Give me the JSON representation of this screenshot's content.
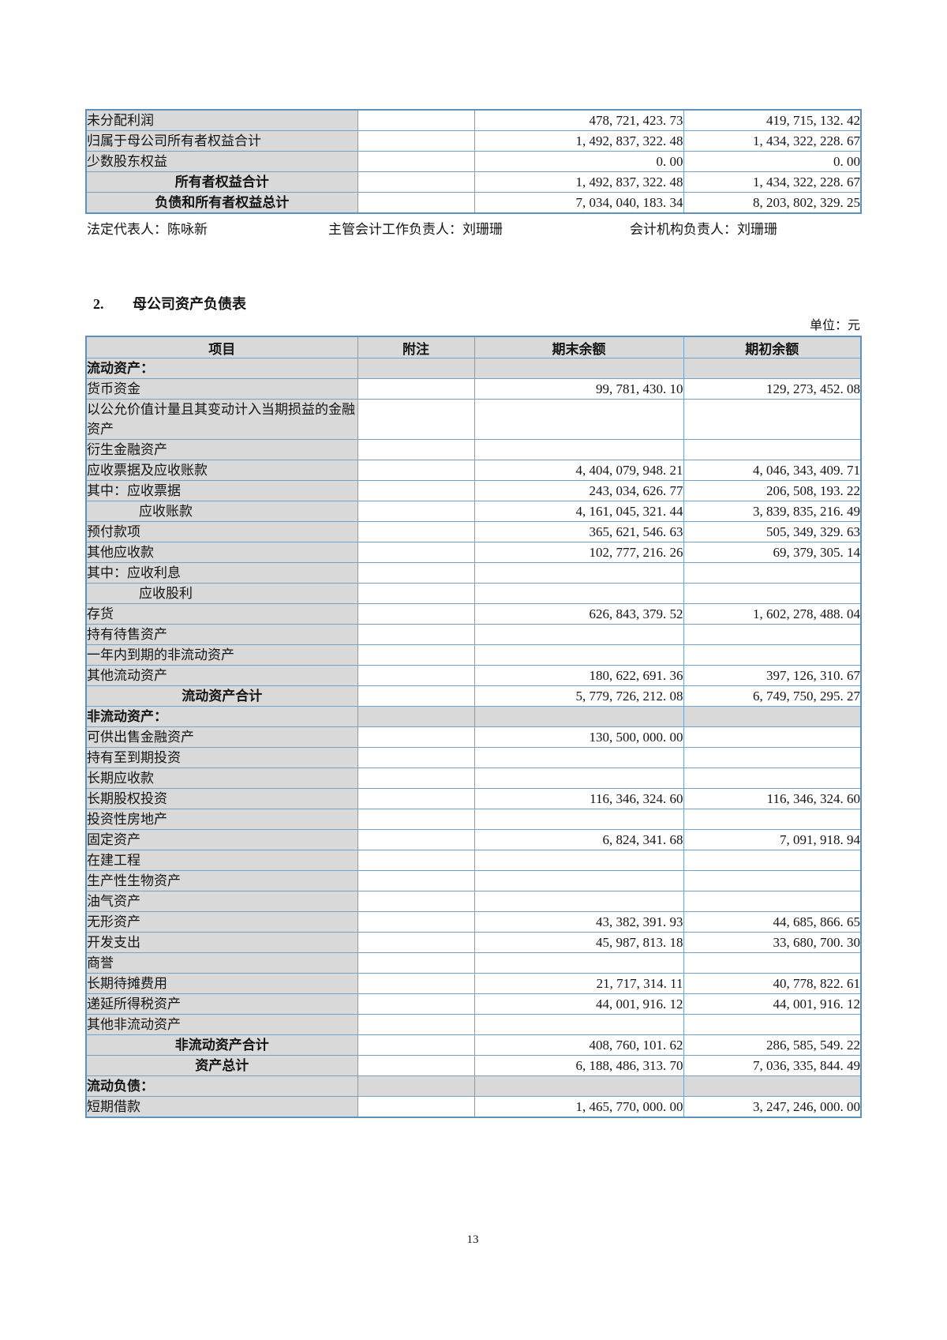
{
  "page": {
    "number": "13"
  },
  "top_table": {
    "rows": [
      {
        "style": "normal",
        "label": "未分配利润",
        "note": "",
        "end": "478, 721, 423. 73",
        "begin": "419, 715, 132. 42"
      },
      {
        "style": "normal",
        "label": "归属于母公司所有者权益合计",
        "note": "",
        "end": "1, 492, 837, 322. 48",
        "begin": "1, 434, 322, 228. 67"
      },
      {
        "style": "normal",
        "label": "少数股东权益",
        "note": "",
        "end": "0. 00",
        "begin": "0. 00"
      },
      {
        "style": "total",
        "label": "所有者权益合计",
        "note": "",
        "end": "1, 492, 837, 322. 48",
        "begin": "1, 434, 322, 228. 67"
      },
      {
        "style": "total",
        "label": "负债和所有者权益总计",
        "note": "",
        "end": "7, 034, 040, 183. 34",
        "begin": "8, 203, 802, 329. 25"
      }
    ]
  },
  "signatures": {
    "legal_rep": "法定代表人：陈咏新",
    "chief_accountant": "主管会计工作负责人：刘珊珊",
    "accounting_dept": "会计机构负责人：刘珊珊"
  },
  "section": {
    "number": "2.",
    "title": "母公司资产负债表",
    "unit_label": "单位：元"
  },
  "main_table": {
    "headers": [
      "项目",
      "附注",
      "期末余额",
      "期初余额"
    ],
    "rows": [
      {
        "style": "section",
        "label": "流动资产：",
        "note": "",
        "end": "",
        "begin": ""
      },
      {
        "style": "normal",
        "label": "货币资金",
        "note": "",
        "end": "99, 781, 430. 10",
        "begin": "129, 273, 452. 08"
      },
      {
        "style": "normal",
        "label": "以公允价值计量且其变动计入当期损益的金融资产",
        "note": "",
        "end": "",
        "begin": ""
      },
      {
        "style": "normal",
        "label": "衍生金融资产",
        "note": "",
        "end": "",
        "begin": ""
      },
      {
        "style": "normal",
        "label": "应收票据及应收账款",
        "note": "",
        "end": "4, 404, 079, 948. 21",
        "begin": "4, 046, 343, 409. 71"
      },
      {
        "style": "normal",
        "label": "其中：应收票据",
        "note": "",
        "end": "243, 034, 626. 77",
        "begin": "206, 508, 193. 22"
      },
      {
        "style": "indent",
        "label": "应收账款",
        "note": "",
        "end": "4, 161, 045, 321. 44",
        "begin": "3, 839, 835, 216. 49"
      },
      {
        "style": "normal",
        "label": "预付款项",
        "note": "",
        "end": "365, 621, 546. 63",
        "begin": "505, 349, 329. 63"
      },
      {
        "style": "normal",
        "label": "其他应收款",
        "note": "",
        "end": "102, 777, 216. 26",
        "begin": "69, 379, 305. 14"
      },
      {
        "style": "normal",
        "label": "其中：应收利息",
        "note": "",
        "end": "",
        "begin": ""
      },
      {
        "style": "indent",
        "label": "应收股利",
        "note": "",
        "end": "",
        "begin": ""
      },
      {
        "style": "normal",
        "label": "存货",
        "note": "",
        "end": "626, 843, 379. 52",
        "begin": "1, 602, 278, 488. 04"
      },
      {
        "style": "normal",
        "label": "持有待售资产",
        "note": "",
        "end": "",
        "begin": ""
      },
      {
        "style": "normal",
        "label": "一年内到期的非流动资产",
        "note": "",
        "end": "",
        "begin": ""
      },
      {
        "style": "normal",
        "label": "其他流动资产",
        "note": "",
        "end": "180, 622, 691. 36",
        "begin": "397, 126, 310. 67"
      },
      {
        "style": "total",
        "label": "流动资产合计",
        "note": "",
        "end": "5, 779, 726, 212. 08",
        "begin": "6, 749, 750, 295. 27"
      },
      {
        "style": "section",
        "label": "非流动资产：",
        "note": "",
        "end": "",
        "begin": ""
      },
      {
        "style": "normal",
        "label": "可供出售金融资产",
        "note": "",
        "end": "130, 500, 000. 00",
        "begin": ""
      },
      {
        "style": "normal",
        "label": "持有至到期投资",
        "note": "",
        "end": "",
        "begin": ""
      },
      {
        "style": "normal",
        "label": "长期应收款",
        "note": "",
        "end": "",
        "begin": ""
      },
      {
        "style": "normal",
        "label": "长期股权投资",
        "note": "",
        "end": "116, 346, 324. 60",
        "begin": "116, 346, 324. 60"
      },
      {
        "style": "normal",
        "label": "投资性房地产",
        "note": "",
        "end": "",
        "begin": ""
      },
      {
        "style": "normal",
        "label": "固定资产",
        "note": "",
        "end": "6, 824, 341. 68",
        "begin": "7, 091, 918. 94"
      },
      {
        "style": "normal",
        "label": "在建工程",
        "note": "",
        "end": "",
        "begin": ""
      },
      {
        "style": "normal",
        "label": "生产性生物资产",
        "note": "",
        "end": "",
        "begin": ""
      },
      {
        "style": "normal",
        "label": "油气资产",
        "note": "",
        "end": "",
        "begin": ""
      },
      {
        "style": "normal",
        "label": "无形资产",
        "note": "",
        "end": "43, 382, 391. 93",
        "begin": "44, 685, 866. 65"
      },
      {
        "style": "normal",
        "label": "开发支出",
        "note": "",
        "end": "45, 987, 813. 18",
        "begin": "33, 680, 700. 30"
      },
      {
        "style": "normal",
        "label": "商誉",
        "note": "",
        "end": "",
        "begin": ""
      },
      {
        "style": "normal",
        "label": "长期待摊费用",
        "note": "",
        "end": "21, 717, 314. 11",
        "begin": "40, 778, 822. 61"
      },
      {
        "style": "normal",
        "label": "递延所得税资产",
        "note": "",
        "end": "44, 001, 916. 12",
        "begin": "44, 001, 916. 12"
      },
      {
        "style": "normal",
        "label": "其他非流动资产",
        "note": "",
        "end": "",
        "begin": ""
      },
      {
        "style": "total",
        "label": "非流动资产合计",
        "note": "",
        "end": "408, 760, 101. 62",
        "begin": "286, 585, 549. 22"
      },
      {
        "style": "total",
        "label": "资产总计",
        "note": "",
        "end": "6, 188, 486, 313. 70",
        "begin": "7, 036, 335, 844. 49"
      },
      {
        "style": "section",
        "label": "流动负债：",
        "note": "",
        "end": "",
        "begin": ""
      },
      {
        "style": "normal",
        "label": "短期借款",
        "note": "",
        "end": "1, 465, 770, 000. 00",
        "begin": "3, 247, 246, 000. 00"
      }
    ]
  }
}
